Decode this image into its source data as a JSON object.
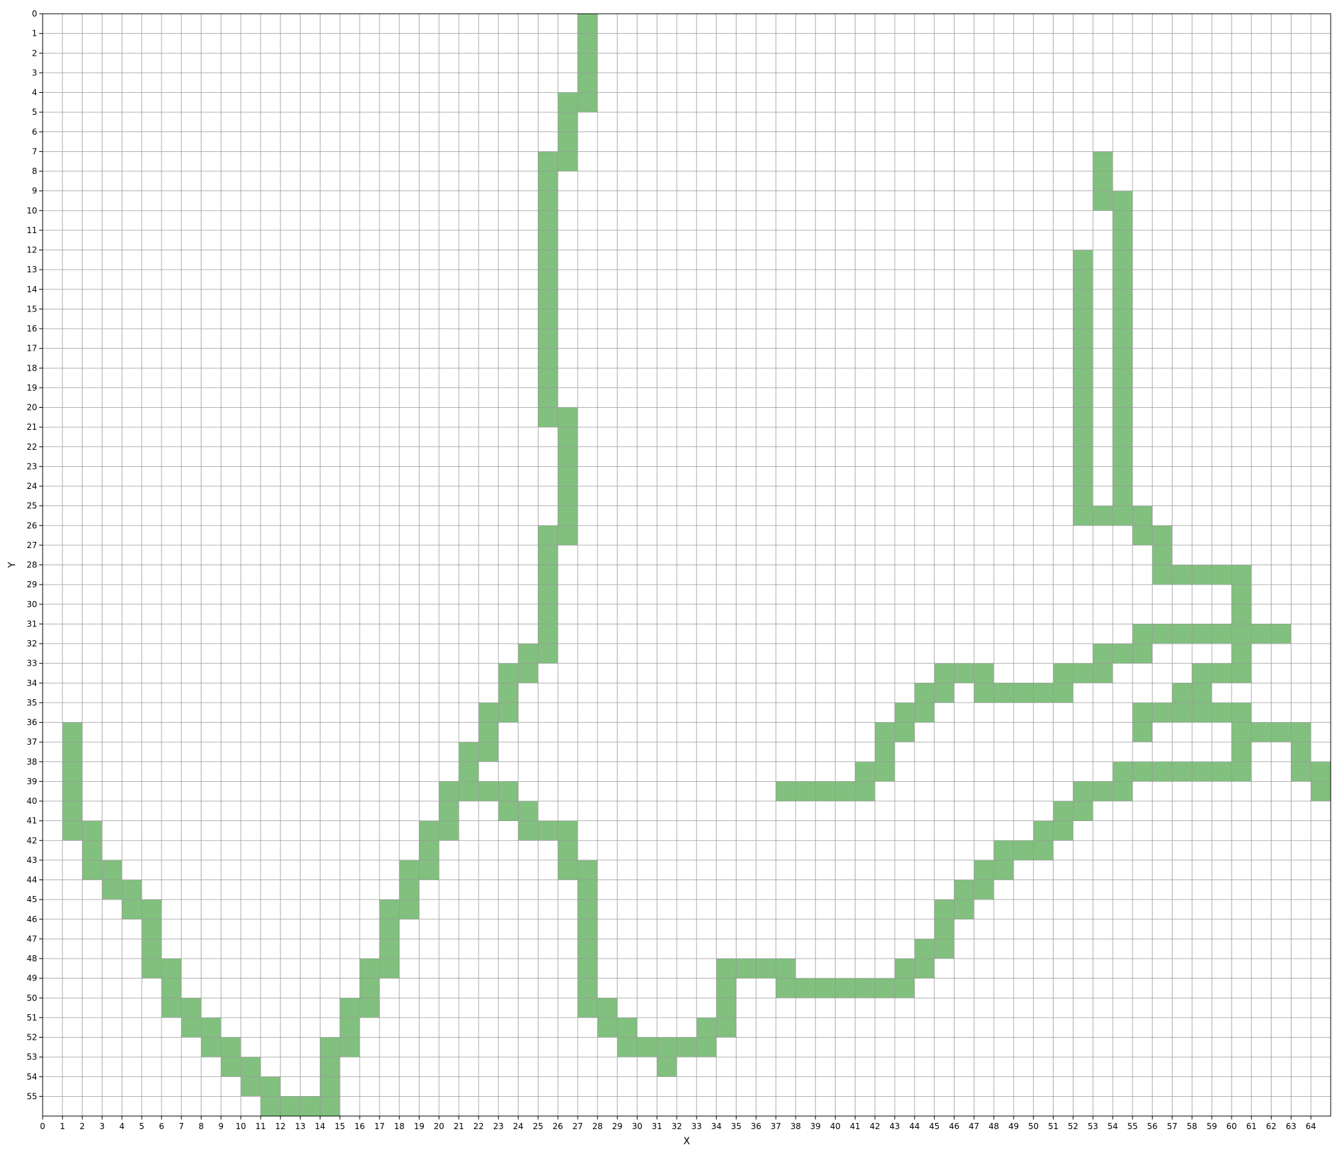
{
  "chart_data": {
    "type": "heatmap",
    "title": "",
    "xlabel": "X",
    "ylabel": "Y",
    "xlim": [
      0,
      65
    ],
    "ylim": [
      56,
      0
    ],
    "x_ticks": [
      0,
      1,
      2,
      3,
      4,
      5,
      6,
      7,
      8,
      9,
      10,
      11,
      12,
      13,
      14,
      15,
      16,
      17,
      18,
      19,
      20,
      21,
      22,
      23,
      24,
      25,
      26,
      27,
      28,
      29,
      30,
      31,
      32,
      33,
      34,
      35,
      36,
      37,
      38,
      39,
      40,
      41,
      42,
      43,
      44,
      45,
      46,
      47,
      48,
      49,
      50,
      51,
      52,
      53,
      54,
      55,
      56,
      57,
      58,
      59,
      60,
      61,
      62,
      63,
      64
    ],
    "y_ticks": [
      0,
      1,
      2,
      3,
      4,
      5,
      6,
      7,
      8,
      9,
      10,
      11,
      12,
      13,
      14,
      15,
      16,
      17,
      18,
      19,
      20,
      21,
      22,
      23,
      24,
      25,
      26,
      27,
      28,
      29,
      30,
      31,
      32,
      33,
      34,
      35,
      36,
      37,
      38,
      39,
      40,
      41,
      42,
      43,
      44,
      45,
      46,
      47,
      48,
      49,
      50,
      51,
      52,
      53,
      54,
      55
    ],
    "grid": true,
    "fill_color": "#81c07e",
    "grid_color": "#999999",
    "cells": [
      [
        27,
        0
      ],
      [
        27,
        1
      ],
      [
        27,
        2
      ],
      [
        27,
        3
      ],
      [
        27,
        4
      ],
      [
        26,
        4
      ],
      [
        26,
        5
      ],
      [
        26,
        6
      ],
      [
        26,
        7
      ],
      [
        25,
        7
      ],
      [
        25,
        8
      ],
      [
        25,
        9
      ],
      [
        25,
        10
      ],
      [
        25,
        11
      ],
      [
        25,
        12
      ],
      [
        25,
        13
      ],
      [
        25,
        14
      ],
      [
        25,
        15
      ],
      [
        25,
        16
      ],
      [
        25,
        17
      ],
      [
        25,
        18
      ],
      [
        25,
        19
      ],
      [
        25,
        20
      ],
      [
        26,
        20
      ],
      [
        26,
        21
      ],
      [
        26,
        22
      ],
      [
        26,
        23
      ],
      [
        26,
        24
      ],
      [
        26,
        25
      ],
      [
        26,
        26
      ],
      [
        25,
        26
      ],
      [
        25,
        27
      ],
      [
        25,
        28
      ],
      [
        25,
        29
      ],
      [
        25,
        30
      ],
      [
        25,
        31
      ],
      [
        25,
        32
      ],
      [
        24,
        32
      ],
      [
        24,
        33
      ],
      [
        23,
        33
      ],
      [
        23,
        34
      ],
      [
        23,
        35
      ],
      [
        22,
        35
      ],
      [
        22,
        36
      ],
      [
        22,
        37
      ],
      [
        21,
        37
      ],
      [
        21,
        38
      ],
      [
        21,
        39
      ],
      [
        20,
        39
      ],
      [
        20,
        40
      ],
      [
        20,
        41
      ],
      [
        19,
        41
      ],
      [
        19,
        42
      ],
      [
        19,
        43
      ],
      [
        18,
        43
      ],
      [
        18,
        44
      ],
      [
        18,
        45
      ],
      [
        17,
        45
      ],
      [
        17,
        46
      ],
      [
        17,
        47
      ],
      [
        17,
        48
      ],
      [
        16,
        48
      ],
      [
        16,
        49
      ],
      [
        16,
        50
      ],
      [
        15,
        50
      ],
      [
        15,
        51
      ],
      [
        15,
        52
      ],
      [
        14,
        52
      ],
      [
        14,
        53
      ],
      [
        14,
        54
      ],
      [
        14,
        55
      ],
      [
        13,
        55
      ],
      [
        12,
        55
      ],
      [
        11,
        55
      ],
      [
        11,
        54
      ],
      [
        10,
        54
      ],
      [
        10,
        53
      ],
      [
        9,
        53
      ],
      [
        9,
        52
      ],
      [
        8,
        52
      ],
      [
        8,
        51
      ],
      [
        7,
        51
      ],
      [
        7,
        50
      ],
      [
        6,
        50
      ],
      [
        6,
        49
      ],
      [
        6,
        48
      ],
      [
        5,
        48
      ],
      [
        5,
        47
      ],
      [
        5,
        46
      ],
      [
        5,
        45
      ],
      [
        4,
        45
      ],
      [
        4,
        44
      ],
      [
        3,
        44
      ],
      [
        3,
        43
      ],
      [
        2,
        43
      ],
      [
        2,
        42
      ],
      [
        2,
        41
      ],
      [
        1,
        41
      ],
      [
        1,
        40
      ],
      [
        1,
        39
      ],
      [
        1,
        38
      ],
      [
        1,
        37
      ],
      [
        1,
        36
      ],
      [
        22,
        39
      ],
      [
        23,
        39
      ],
      [
        23,
        40
      ],
      [
        24,
        40
      ],
      [
        24,
        41
      ],
      [
        25,
        41
      ],
      [
        26,
        41
      ],
      [
        26,
        42
      ],
      [
        26,
        43
      ],
      [
        27,
        43
      ],
      [
        27,
        44
      ],
      [
        27,
        45
      ],
      [
        27,
        46
      ],
      [
        27,
        47
      ],
      [
        27,
        48
      ],
      [
        27,
        49
      ],
      [
        27,
        50
      ],
      [
        28,
        50
      ],
      [
        28,
        51
      ],
      [
        29,
        51
      ],
      [
        29,
        52
      ],
      [
        30,
        52
      ],
      [
        31,
        52
      ],
      [
        31,
        53
      ],
      [
        32,
        52
      ],
      [
        33,
        52
      ],
      [
        33,
        51
      ],
      [
        34,
        51
      ],
      [
        34,
        50
      ],
      [
        34,
        49
      ],
      [
        34,
        48
      ],
      [
        35,
        48
      ],
      [
        36,
        48
      ],
      [
        37,
        48
      ],
      [
        37,
        49
      ],
      [
        38,
        49
      ],
      [
        39,
        49
      ],
      [
        40,
        49
      ],
      [
        41,
        49
      ],
      [
        42,
        49
      ],
      [
        43,
        49
      ],
      [
        43,
        48
      ],
      [
        44,
        48
      ],
      [
        44,
        47
      ],
      [
        45,
        47
      ],
      [
        45,
        46
      ],
      [
        45,
        45
      ],
      [
        46,
        45
      ],
      [
        46,
        44
      ],
      [
        47,
        44
      ],
      [
        47,
        43
      ],
      [
        48,
        43
      ],
      [
        48,
        42
      ],
      [
        49,
        42
      ],
      [
        50,
        42
      ],
      [
        50,
        41
      ],
      [
        51,
        41
      ],
      [
        51,
        40
      ],
      [
        52,
        40
      ],
      [
        52,
        39
      ],
      [
        53,
        39
      ],
      [
        54,
        39
      ],
      [
        54,
        38
      ],
      [
        55,
        38
      ],
      [
        56,
        38
      ],
      [
        57,
        38
      ],
      [
        58,
        38
      ],
      [
        59,
        38
      ],
      [
        60,
        38
      ],
      [
        60,
        37
      ],
      [
        60,
        36
      ],
      [
        61,
        36
      ],
      [
        62,
        36
      ],
      [
        63,
        36
      ],
      [
        63,
        37
      ],
      [
        63,
        38
      ],
      [
        64,
        38
      ],
      [
        64,
        39
      ],
      [
        37,
        39
      ],
      [
        38,
        39
      ],
      [
        39,
        39
      ],
      [
        40,
        39
      ],
      [
        41,
        39
      ],
      [
        41,
        38
      ],
      [
        42,
        38
      ],
      [
        42,
        37
      ],
      [
        42,
        36
      ],
      [
        43,
        36
      ],
      [
        43,
        35
      ],
      [
        44,
        35
      ],
      [
        44,
        34
      ],
      [
        45,
        34
      ],
      [
        45,
        33
      ],
      [
        46,
        33
      ],
      [
        47,
        33
      ],
      [
        47,
        34
      ],
      [
        48,
        34
      ],
      [
        49,
        34
      ],
      [
        50,
        34
      ],
      [
        51,
        34
      ],
      [
        51,
        33
      ],
      [
        52,
        33
      ],
      [
        53,
        33
      ],
      [
        53,
        32
      ],
      [
        54,
        32
      ],
      [
        55,
        32
      ],
      [
        55,
        31
      ],
      [
        56,
        31
      ],
      [
        57,
        31
      ],
      [
        58,
        31
      ],
      [
        59,
        31
      ],
      [
        60,
        31
      ],
      [
        61,
        31
      ],
      [
        62,
        31
      ],
      [
        60,
        29
      ],
      [
        60,
        30
      ],
      [
        60,
        32
      ],
      [
        60,
        33
      ],
      [
        59,
        33
      ],
      [
        58,
        33
      ],
      [
        58,
        34
      ],
      [
        57,
        34
      ],
      [
        57,
        35
      ],
      [
        56,
        35
      ],
      [
        55,
        35
      ],
      [
        55,
        36
      ],
      [
        58,
        35
      ],
      [
        59,
        35
      ],
      [
        60,
        35
      ],
      [
        53,
        7
      ],
      [
        53,
        8
      ],
      [
        53,
        9
      ],
      [
        54,
        9
      ],
      [
        54,
        10
      ],
      [
        54,
        11
      ],
      [
        54,
        12
      ],
      [
        54,
        13
      ],
      [
        54,
        14
      ],
      [
        54,
        15
      ],
      [
        54,
        16
      ],
      [
        54,
        17
      ],
      [
        54,
        18
      ],
      [
        54,
        19
      ],
      [
        54,
        20
      ],
      [
        54,
        21
      ],
      [
        54,
        22
      ],
      [
        54,
        23
      ],
      [
        54,
        24
      ],
      [
        54,
        25
      ],
      [
        53,
        25
      ],
      [
        52,
        25
      ],
      [
        52,
        24
      ],
      [
        52,
        23
      ],
      [
        52,
        22
      ],
      [
        52,
        21
      ],
      [
        52,
        20
      ],
      [
        52,
        19
      ],
      [
        52,
        18
      ],
      [
        52,
        17
      ],
      [
        52,
        16
      ],
      [
        52,
        15
      ],
      [
        52,
        14
      ],
      [
        52,
        13
      ],
      [
        52,
        12
      ],
      [
        55,
        25
      ],
      [
        55,
        26
      ],
      [
        56,
        26
      ],
      [
        56,
        27
      ],
      [
        56,
        28
      ],
      [
        57,
        28
      ],
      [
        58,
        28
      ],
      [
        59,
        28
      ],
      [
        60,
        28
      ]
    ]
  }
}
